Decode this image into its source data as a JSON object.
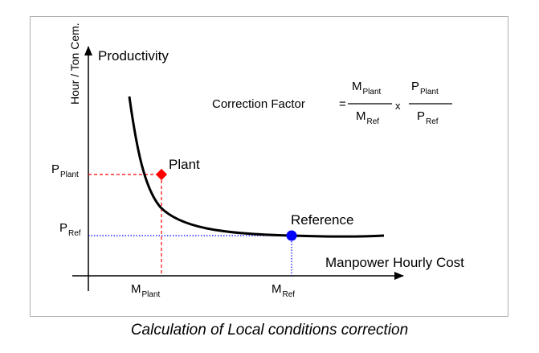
{
  "axes": {
    "y_title": "Productivity",
    "y_unit": "Hour / Ton Cem.",
    "x_title": "Manpower Hourly Cost"
  },
  "formula": {
    "label": "Correction Factor",
    "equals": "=",
    "num1_main": "M",
    "num1_sub": "Plant",
    "den1_main": "M",
    "den1_sub": "Ref",
    "times": "x",
    "num2_main": "P",
    "num2_sub": "Plant",
    "den2_main": "P",
    "den2_sub": "Ref"
  },
  "points": {
    "plant": "Plant",
    "reference": "Reference"
  },
  "ticks": {
    "p_plant_main": "P",
    "p_plant_sub": "Plant",
    "p_ref_main": "P",
    "p_ref_sub": "Ref",
    "m_plant_main": "M",
    "m_plant_sub": "Plant",
    "m_ref_main": "M",
    "m_ref_sub": "Ref"
  },
  "colors": {
    "plant": "#ff0000",
    "reference": "#0000ff",
    "curve": "#000000"
  },
  "caption": "Calculation of Local conditions correction"
}
